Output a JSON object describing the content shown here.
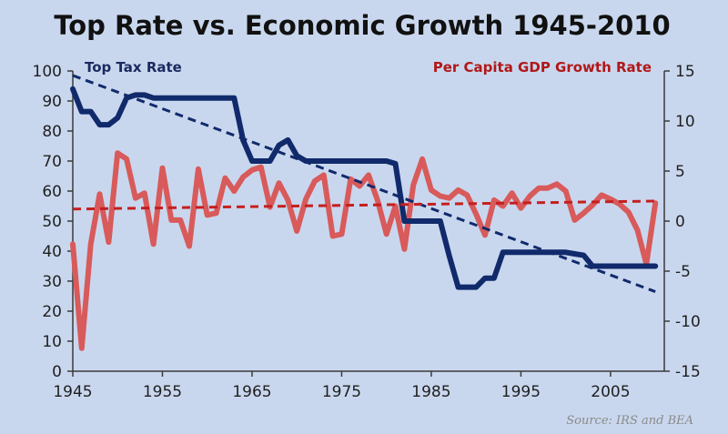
{
  "chart_data": {
    "type": "line",
    "title": "Top Rate vs. Economic Growth 1945-2010",
    "source": "Source: IRS and BEA",
    "x_ticks": [
      "1945",
      "1955",
      "1965",
      "1975",
      "1985",
      "1995",
      "2005"
    ],
    "xlim": [
      1945,
      2011
    ],
    "y_left": {
      "ylim": [
        0,
        100
      ],
      "ticks": [
        "0",
        "10",
        "20",
        "30",
        "40",
        "50",
        "60",
        "70",
        "80",
        "90",
        "100"
      ]
    },
    "y_right": {
      "ylim": [
        -15,
        15
      ],
      "ticks": [
        "-15",
        "-10",
        "-5",
        "0",
        "5",
        "10",
        "15"
      ]
    },
    "series": [
      {
        "name": "Top Tax Rate",
        "axis": "left",
        "color": "#102a6b",
        "step": true,
        "x": [
          1945,
          1946,
          1947,
          1948,
          1949,
          1950,
          1951,
          1952,
          1953,
          1954,
          1955,
          1956,
          1957,
          1958,
          1959,
          1960,
          1961,
          1962,
          1963,
          1964,
          1965,
          1966,
          1967,
          1968,
          1969,
          1970,
          1971,
          1972,
          1973,
          1974,
          1975,
          1976,
          1977,
          1978,
          1979,
          1980,
          1981,
          1982,
          1983,
          1984,
          1985,
          1986,
          1987,
          1988,
          1989,
          1990,
          1991,
          1992,
          1993,
          1994,
          1995,
          1996,
          1997,
          1998,
          1999,
          2000,
          2001,
          2002,
          2003,
          2004,
          2005,
          2006,
          2007,
          2008,
          2009,
          2010
        ],
        "values": [
          94,
          86.5,
          86.5,
          82.1,
          82.1,
          84.4,
          91,
          92,
          92,
          91,
          91,
          91,
          91,
          91,
          91,
          91,
          91,
          91,
          91,
          77,
          70,
          70,
          70,
          75.25,
          77,
          71.75,
          70,
          70,
          70,
          70,
          70,
          70,
          70,
          70,
          70,
          70,
          69.125,
          50,
          50,
          50,
          50,
          50,
          38.5,
          28,
          28,
          28,
          31,
          31,
          39.6,
          39.6,
          39.6,
          39.6,
          39.6,
          39.6,
          39.6,
          39.6,
          39.1,
          38.6,
          35,
          35,
          35,
          35,
          35,
          35,
          35,
          35
        ]
      },
      {
        "name": "Per Capita GDP Growth Rate",
        "axis": "right",
        "color": "#d85a5a",
        "x": [
          1945,
          1946,
          1947,
          1948,
          1949,
          1950,
          1951,
          1952,
          1953,
          1954,
          1955,
          1956,
          1957,
          1958,
          1959,
          1960,
          1961,
          1962,
          1963,
          1964,
          1965,
          1966,
          1967,
          1968,
          1969,
          1970,
          1971,
          1972,
          1973,
          1974,
          1975,
          1976,
          1977,
          1978,
          1979,
          1980,
          1981,
          1982,
          1983,
          1984,
          1985,
          1986,
          1987,
          1988,
          1989,
          1990,
          1991,
          1992,
          1993,
          1994,
          1995,
          1996,
          1997,
          1998,
          1999,
          2000,
          2001,
          2002,
          2003,
          2004,
          2005,
          2006,
          2007,
          2008,
          2009,
          2010
        ],
        "values": [
          -2.3,
          -12.7,
          -2.3,
          2.7,
          -2.1,
          6.8,
          6.2,
          2.3,
          2.8,
          -2.3,
          5.3,
          0.1,
          0.1,
          -2.5,
          5.2,
          0.6,
          0.8,
          4.3,
          3.0,
          4.4,
          5.1,
          5.4,
          1.4,
          3.8,
          2.1,
          -1.0,
          2.2,
          4.0,
          4.6,
          -1.5,
          -1.3,
          4.2,
          3.5,
          4.6,
          2.1,
          -1.3,
          1.5,
          -2.8,
          3.6,
          6.2,
          3.1,
          2.5,
          2.3,
          3.1,
          2.6,
          0.7,
          -1.4,
          2.1,
          1.5,
          2.8,
          1.3,
          2.5,
          3.3,
          3.3,
          3.7,
          3.0,
          0.1,
          0.8,
          1.6,
          2.6,
          2.2,
          1.7,
          0.9,
          -0.9,
          -4.3,
          1.8
        ]
      }
    ],
    "trendlines": [
      {
        "series": "Top Tax Rate",
        "style": "dashed",
        "color": "#102a6b",
        "axis": "left",
        "x": [
          1945,
          2010
        ],
        "values": [
          98.5,
          26.5
        ]
      },
      {
        "series": "Per Capita GDP Growth Rate",
        "style": "dashed",
        "color": "#c41f1f",
        "axis": "right",
        "x": [
          1945,
          2010
        ],
        "values": [
          1.2,
          2.0
        ]
      }
    ],
    "legend": [
      "Top Tax Rate",
      "Per Capita GDP Growth Rate"
    ],
    "legend_placement": "top-left and top-right",
    "grid": false,
    "background": "#c9d7ee"
  }
}
